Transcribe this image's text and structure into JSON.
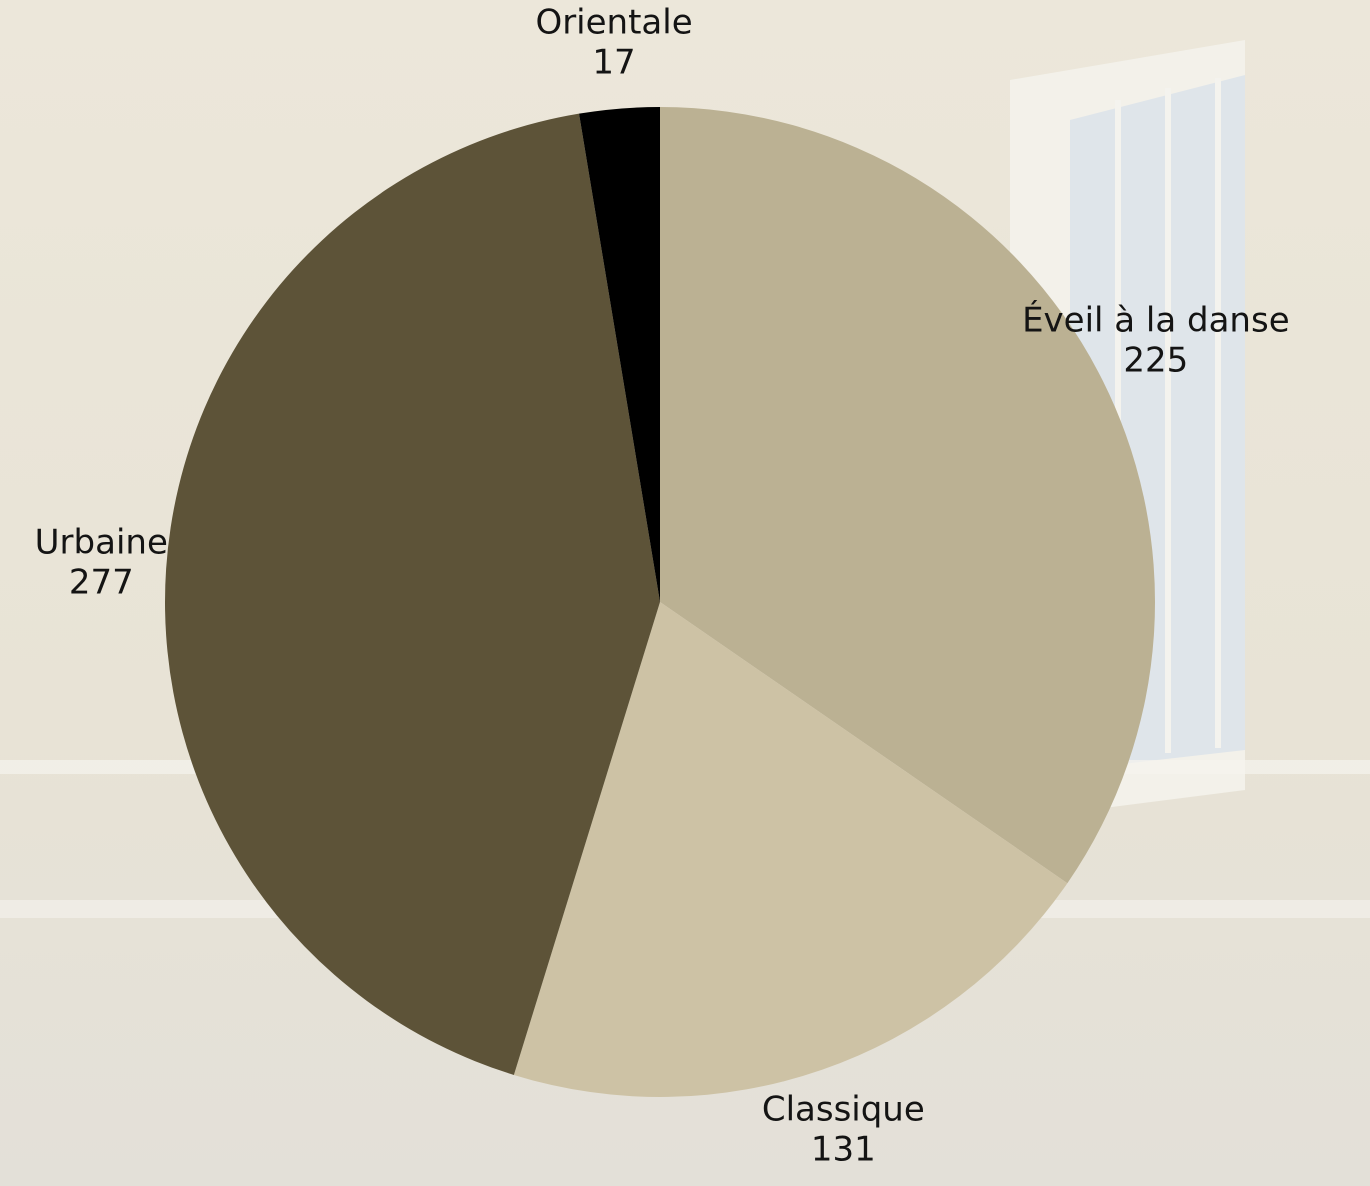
{
  "chart_data": {
    "type": "pie",
    "categories": [
      "Éveil à la danse",
      "Classique",
      "Urbaine",
      "Orientale"
    ],
    "values": [
      225,
      131,
      277,
      17
    ],
    "colors": [
      "#bbb193",
      "#cdc2a5",
      "#5d5338",
      "#000000"
    ]
  }
}
